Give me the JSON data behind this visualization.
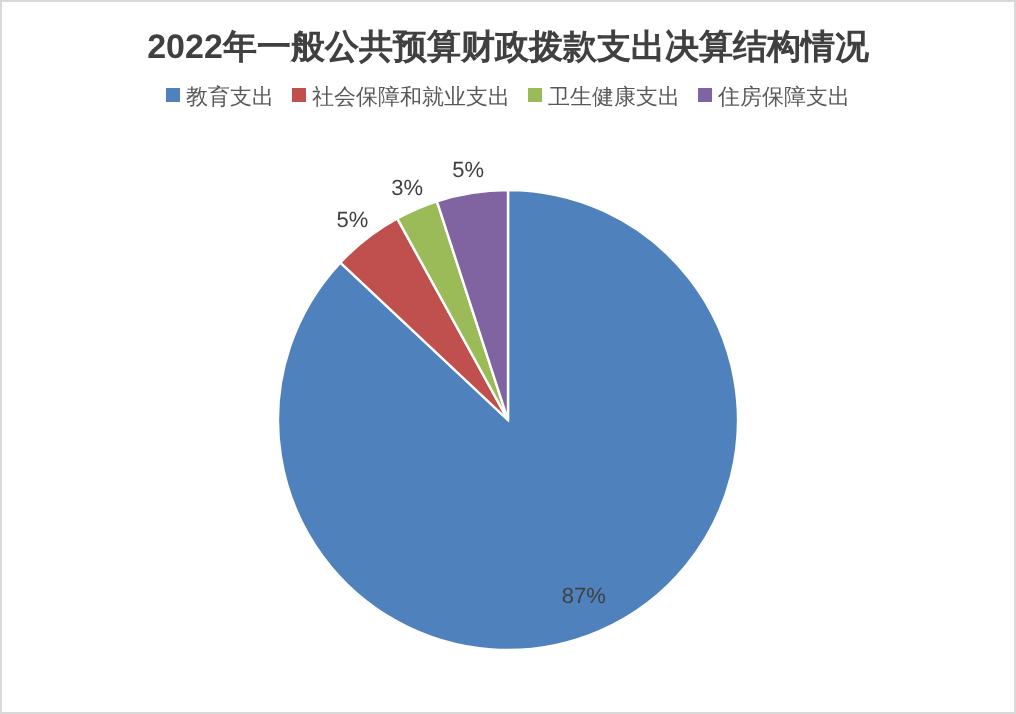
{
  "chart_data": {
    "type": "pie",
    "title": "2022年一般公共预算财政拨款支出决算结构情况",
    "categories": [
      "教育支出",
      "社会保障和就业支出",
      "卫生健康支出",
      "住房保障支出"
    ],
    "values": [
      87,
      5,
      3,
      5
    ],
    "colors": [
      "#4f81bd",
      "#c0504d",
      "#9bbb59",
      "#8064a2"
    ],
    "value_labels": [
      "87%",
      "5%",
      "3%",
      "5%"
    ],
    "legend": "top"
  }
}
